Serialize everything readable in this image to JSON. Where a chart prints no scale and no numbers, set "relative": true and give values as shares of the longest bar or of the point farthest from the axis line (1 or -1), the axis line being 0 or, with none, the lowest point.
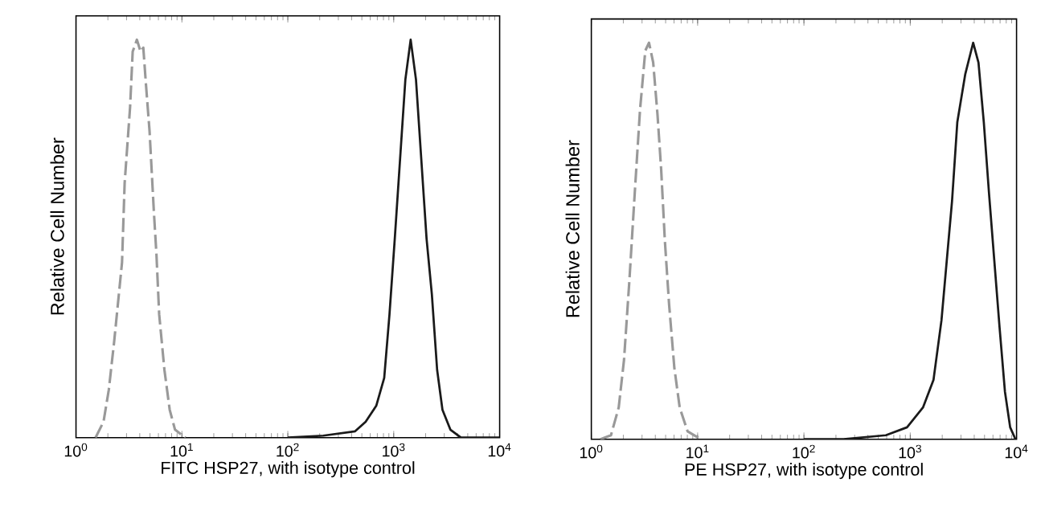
{
  "chart_data": [
    {
      "type": "line",
      "relative": true,
      "log": "x",
      "xlim": [
        1,
        10000
      ],
      "tick_labels": "x",
      "grid": false,
      "xticks": [
        {
          "value": 1,
          "label": "10$^{0}$"
        },
        {
          "value": 10,
          "label": "10$^{1}$"
        },
        {
          "value": 100,
          "label": "10$^{2}$"
        },
        {
          "value": 1000,
          "label": "10$^{3}$"
        },
        {
          "value": 10000,
          "label": "10$^{4}$"
        }
      ],
      "xlabel": "FITC  HSP27,  with isotype control",
      "ylabel": "Relative Cell Number",
      "series": [
        {
          "color": "#999999",
          "line_style": "dashed",
          "x": [
            1.53,
            1.82,
            2.04,
            2.29,
            2.72,
            2.88,
            3.24,
            3.43,
            3.76,
            4.07,
            4.32,
            4.57,
            4.95,
            5.43,
            5.75,
            6.1,
            6.84,
            7.67,
            8.61,
            10.8
          ],
          "values": [
            0,
            0.04,
            0.12,
            0.24,
            0.44,
            0.64,
            0.83,
            0.97,
            1,
            0.97,
            0.98,
            0.89,
            0.77,
            0.57,
            0.46,
            0.31,
            0.17,
            0.07,
            0.02,
            0
          ]
        },
        {
          "color": "#1a1a1a",
          "line_style": "solid",
          "x": [
            100,
            216,
            432,
            543,
            684,
            813,
            912,
            1023,
            1148,
            1288,
            1445,
            1622,
            1820,
            2042,
            2291,
            2570,
            2884,
            3428,
            4315,
            10000
          ],
          "values": [
            0,
            0.005,
            0.016,
            0.04,
            0.08,
            0.15,
            0.31,
            0.5,
            0.7,
            0.9,
            1,
            0.9,
            0.7,
            0.5,
            0.36,
            0.17,
            0.07,
            0.02,
            0,
            0
          ]
        }
      ]
    },
    {
      "type": "line",
      "relative": true,
      "log": "x",
      "xlim": [
        1,
        10000
      ],
      "tick_labels": "x",
      "grid": false,
      "xticks": [
        {
          "value": 1,
          "label": "10$^{0}$"
        },
        {
          "value": 10,
          "label": "10$^{1}$"
        },
        {
          "value": 100,
          "label": "10$^{2}$"
        },
        {
          "value": 1000,
          "label": "10$^{3}$"
        },
        {
          "value": 10000,
          "label": "10$^{4}$"
        }
      ],
      "xlabel": "PE  HSP27,  with isotype control",
      "ylabel": "Relative Cell Number",
      "series": [
        {
          "color": "#999999",
          "line_style": "dashed",
          "x": [
            1.22,
            1.53,
            1.81,
            2.03,
            2.28,
            2.56,
            2.87,
            3.22,
            3.49,
            3.82,
            4.19,
            4.54,
            4.92,
            5.39,
            6.04,
            6.78,
            8.04,
            10.7
          ],
          "values": [
            0,
            0.01,
            0.08,
            0.2,
            0.4,
            0.62,
            0.83,
            0.98,
            1,
            0.95,
            0.82,
            0.68,
            0.5,
            0.34,
            0.18,
            0.08,
            0.02,
            0
          ]
        },
        {
          "color": "#1a1a1a",
          "line_style": "solid",
          "x": [
            100,
            236,
            590,
            933,
            1318,
            1656,
            1968,
            2205,
            2472,
            2773,
            3289,
            3908,
            4385,
            4920,
            5510,
            6180,
            6934,
            7780,
            8710,
            9770
          ],
          "values": [
            0,
            0,
            0.01,
            0.03,
            0.08,
            0.15,
            0.3,
            0.45,
            0.6,
            0.8,
            0.92,
            1,
            0.95,
            0.8,
            0.62,
            0.45,
            0.28,
            0.12,
            0.03,
            0
          ]
        }
      ]
    }
  ]
}
